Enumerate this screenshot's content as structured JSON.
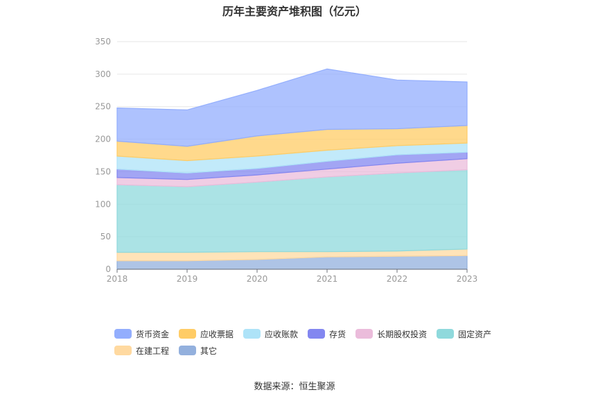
{
  "chart_data": {
    "type": "area",
    "stacked": true,
    "title": "历年主要资产堆积图（亿元）",
    "x": [
      "2018",
      "2019",
      "2020",
      "2021",
      "2022",
      "2023"
    ],
    "ylim": [
      0,
      350
    ],
    "yticks": [
      "0",
      "50",
      "100",
      "150",
      "200",
      "250",
      "300",
      "350"
    ],
    "grid": true,
    "legend_position": "bottom",
    "series": [
      {
        "name": "其它",
        "color": "#93b0dd",
        "values": [
          13,
          13,
          15,
          19,
          20,
          21
        ]
      },
      {
        "name": "在建工程",
        "color": "#ffd9a0",
        "values": [
          13,
          13,
          12,
          8,
          8,
          10
        ]
      },
      {
        "name": "固定资产",
        "color": "#8fd9dc",
        "values": [
          104,
          101,
          107,
          115,
          120,
          122
        ]
      },
      {
        "name": "长期股权投资",
        "color": "#ebbcdb",
        "values": [
          11,
          11,
          11,
          12,
          15,
          17
        ]
      },
      {
        "name": "存货",
        "color": "#8387f0",
        "values": [
          13,
          10,
          10,
          12,
          13,
          10
        ]
      },
      {
        "name": "应收账款",
        "color": "#aee3f8",
        "values": [
          20,
          19,
          19,
          17,
          14,
          14
        ]
      },
      {
        "name": "应收票据",
        "color": "#ffcc66",
        "values": [
          23,
          22,
          31,
          32,
          26,
          27
        ]
      },
      {
        "name": "货币资金",
        "color": "#93aefd",
        "values": [
          51,
          56,
          70,
          93,
          75,
          67
        ]
      }
    ],
    "legend_order": [
      "货币资金",
      "应收票据",
      "应收账款",
      "存货",
      "长期股权投资",
      "固定资产",
      "在建工程",
      "其它"
    ],
    "source": "数据来源：恒生聚源"
  }
}
